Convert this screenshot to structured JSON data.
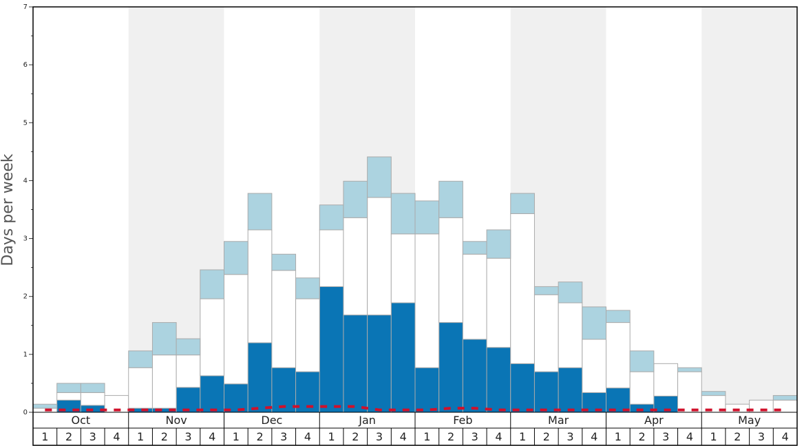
{
  "chart_data": {
    "type": "bar",
    "stacked": true,
    "y_label": "Days per week",
    "groups": [
      "Oct",
      "Nov",
      "Dec",
      "Jan",
      "Feb",
      "Mar",
      "Apr",
      "May"
    ],
    "categories": [
      "1",
      "2",
      "3",
      "4",
      "1",
      "2",
      "3",
      "4",
      "1",
      "2",
      "3",
      "4",
      "1",
      "2",
      "3",
      "4",
      "1",
      "2",
      "3",
      "4",
      "1",
      "2",
      "3",
      "4",
      "1",
      "2",
      "3",
      "4",
      "1",
      "2",
      "3",
      "4"
    ],
    "series": [
      {
        "color": "#0a75b5",
        "values": [
          0,
          0.21,
          0.12,
          0,
          0.07,
          0.07,
          0.43,
          0.63,
          0.49,
          1.2,
          0.77,
          0.7,
          2.17,
          1.68,
          1.68,
          1.89,
          0.77,
          1.55,
          1.26,
          1.12,
          0.84,
          0.7,
          0.77,
          0.34,
          0.42,
          0.14,
          0.28,
          0,
          0,
          0,
          0,
          0
        ]
      },
      {
        "color": "#ffffff",
        "values": [
          0.07,
          0.13,
          0.22,
          0.29,
          0.7,
          0.92,
          0.56,
          1.33,
          1.89,
          1.95,
          1.68,
          1.26,
          0.98,
          1.68,
          2.03,
          1.19,
          2.31,
          1.81,
          1.47,
          1.54,
          2.59,
          1.33,
          1.12,
          0.92,
          1.13,
          0.56,
          0.56,
          0.7,
          0.29,
          0.14,
          0.21,
          0.21
        ]
      },
      {
        "color": "#acd3e0",
        "values": [
          0.07,
          0.16,
          0.16,
          0,
          0.29,
          0.56,
          0.28,
          0.5,
          0.57,
          0.63,
          0.28,
          0.36,
          0.43,
          0.63,
          0.7,
          0.7,
          0.57,
          0.63,
          0.22,
          0.49,
          0.35,
          0.14,
          0.36,
          0.56,
          0.21,
          0.36,
          0,
          0.07,
          0.07,
          0,
          0,
          0.08
        ]
      }
    ],
    "line": {
      "color": "#d0112b",
      "style": "dashed",
      "values": [
        0.04,
        0.04,
        0.04,
        0.04,
        0.04,
        0.04,
        0.04,
        0.04,
        0.04,
        0.07,
        0.1,
        0.1,
        0.1,
        0.1,
        0.04,
        0.04,
        0.04,
        0.07,
        0.07,
        0.04,
        0.04,
        0.04,
        0.04,
        0.04,
        0.04,
        0.04,
        0.04,
        0.04,
        0.04,
        0.04,
        0.04,
        0.04
      ]
    },
    "ylim": [
      0,
      7
    ],
    "yticks": [
      0,
      1,
      2,
      3,
      4,
      5,
      6,
      7
    ],
    "yticks_minor": [
      0.5,
      1.5,
      2.5,
      3.5,
      4.5,
      5.5,
      6.5
    ]
  }
}
